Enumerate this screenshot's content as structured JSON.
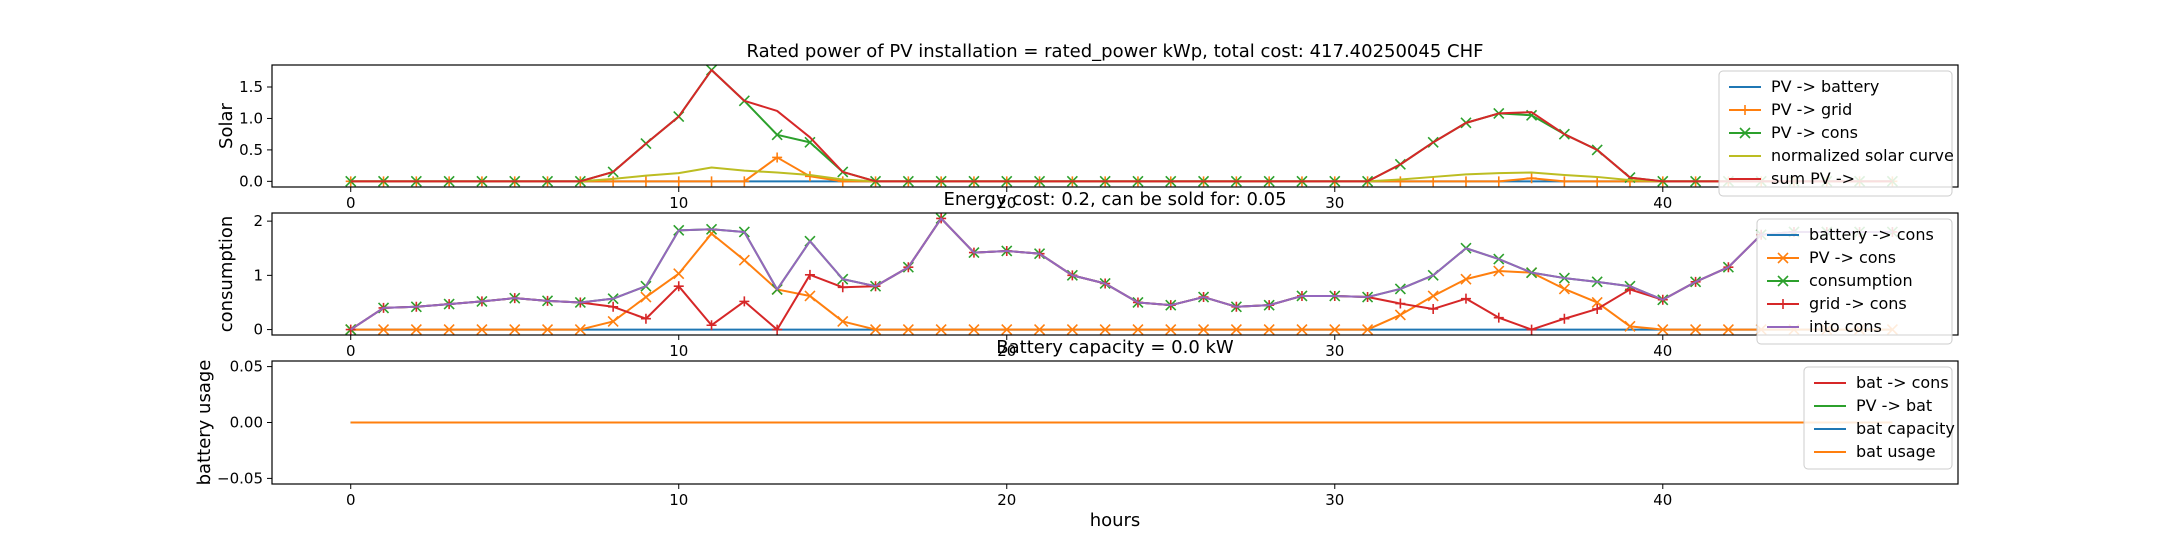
{
  "chart_data": [
    {
      "type": "line",
      "title": "Rated power of PV installation = rated_power kWp, total cost: 417.40250045 CHF",
      "xlabel": "",
      "ylabel": "Solar",
      "xlim": [
        -2.4,
        49
      ],
      "ylim": [
        -0.09,
        1.85
      ],
      "xticks": [
        "0",
        "10",
        "20",
        "30",
        "40"
      ],
      "yticks": [
        "0.0",
        "0.5",
        "1.0",
        "1.5"
      ],
      "legend_position": "top-right",
      "x": [
        0,
        1,
        2,
        3,
        4,
        5,
        6,
        7,
        8,
        9,
        10,
        11,
        12,
        13,
        14,
        15,
        16,
        17,
        18,
        19,
        20,
        21,
        22,
        23,
        24,
        25,
        26,
        27,
        28,
        29,
        30,
        31,
        32,
        33,
        34,
        35,
        36,
        37,
        38,
        39,
        40,
        41,
        42,
        43,
        44,
        45,
        46,
        47
      ],
      "series": [
        {
          "name": "PV -> battery",
          "color": "#1f77b4",
          "marker": "none",
          "values": [
            0,
            0,
            0,
            0,
            0,
            0,
            0,
            0,
            0,
            0,
            0,
            0,
            0,
            0,
            0,
            0,
            0,
            0,
            0,
            0,
            0,
            0,
            0,
            0,
            0,
            0,
            0,
            0,
            0,
            0,
            0,
            0,
            0,
            0,
            0,
            0,
            0,
            0,
            0,
            0,
            0,
            0,
            0,
            0,
            0,
            0,
            0,
            0
          ]
        },
        {
          "name": "PV -> grid",
          "color": "#ff7f0e",
          "marker": "plus",
          "values": [
            0,
            0,
            0,
            0,
            0,
            0,
            0,
            0,
            0,
            0,
            0,
            0,
            0,
            0.38,
            0.08,
            0,
            0,
            0,
            0,
            0,
            0,
            0,
            0,
            0,
            0,
            0,
            0,
            0,
            0,
            0,
            0,
            0,
            0,
            0,
            0,
            0,
            0.05,
            0,
            0,
            0,
            0,
            0,
            0,
            0,
            0,
            0,
            0,
            0
          ]
        },
        {
          "name": "PV -> cons",
          "color": "#2ca02c",
          "marker": "x",
          "values": [
            0,
            0,
            0,
            0,
            0,
            0,
            0,
            0,
            0.15,
            0.6,
            1.03,
            1.77,
            1.28,
            0.74,
            0.62,
            0.15,
            0,
            0,
            0,
            0,
            0,
            0,
            0,
            0,
            0,
            0,
            0,
            0,
            0,
            0,
            0,
            0,
            0.27,
            0.62,
            0.93,
            1.08,
            1.05,
            0.75,
            0.5,
            0.06,
            0,
            0,
            0,
            0,
            0,
            0,
            0,
            0
          ]
        },
        {
          "name": "normalized solar curve",
          "color": "#bcbd22",
          "marker": "none",
          "values": [
            0,
            0,
            0,
            0,
            0,
            0,
            0,
            0,
            0.04,
            0.09,
            0.13,
            0.22,
            0.17,
            0.14,
            0.1,
            0.03,
            0,
            0,
            0,
            0,
            0,
            0,
            0,
            0,
            0,
            0,
            0,
            0,
            0,
            0,
            0,
            0,
            0.03,
            0.07,
            0.11,
            0.13,
            0.14,
            0.1,
            0.07,
            0.02,
            0,
            0,
            0,
            0,
            0,
            0,
            0,
            0
          ]
        },
        {
          "name": "sum PV ->",
          "color": "#d62728",
          "marker": "none",
          "values": [
            0,
            0,
            0,
            0,
            0,
            0,
            0,
            0,
            0.15,
            0.6,
            1.03,
            1.77,
            1.28,
            1.12,
            0.7,
            0.15,
            0,
            0,
            0,
            0,
            0,
            0,
            0,
            0,
            0,
            0,
            0,
            0,
            0,
            0,
            0,
            0,
            0.27,
            0.62,
            0.93,
            1.08,
            1.1,
            0.75,
            0.5,
            0.06,
            0,
            0,
            0,
            0,
            0,
            0,
            0,
            0
          ]
        }
      ]
    },
    {
      "type": "line",
      "title": "Energy cost: 0.2, can be sold for: 0.05",
      "xlabel": "",
      "ylabel": "consumption",
      "xlim": [
        -2.4,
        49
      ],
      "ylim": [
        -0.1,
        2.15
      ],
      "xticks": [
        "0",
        "10",
        "20",
        "30",
        "40"
      ],
      "yticks": [
        "0",
        "1",
        "2"
      ],
      "legend_position": "top-right",
      "x": [
        0,
        1,
        2,
        3,
        4,
        5,
        6,
        7,
        8,
        9,
        10,
        11,
        12,
        13,
        14,
        15,
        16,
        17,
        18,
        19,
        20,
        21,
        22,
        23,
        24,
        25,
        26,
        27,
        28,
        29,
        30,
        31,
        32,
        33,
        34,
        35,
        36,
        37,
        38,
        39,
        40,
        41,
        42,
        43,
        44,
        45,
        46,
        47
      ],
      "series": [
        {
          "name": "battery -> cons",
          "color": "#1f77b4",
          "marker": "none",
          "values": [
            0,
            0,
            0,
            0,
            0,
            0,
            0,
            0,
            0,
            0,
            0,
            0,
            0,
            0,
            0,
            0,
            0,
            0,
            0,
            0,
            0,
            0,
            0,
            0,
            0,
            0,
            0,
            0,
            0,
            0,
            0,
            0,
            0,
            0,
            0,
            0,
            0,
            0,
            0,
            0,
            0,
            0,
            0,
            0,
            0,
            0,
            0,
            0
          ]
        },
        {
          "name": "PV -> cons",
          "color": "#ff7f0e",
          "marker": "x",
          "values": [
            0,
            0,
            0,
            0,
            0,
            0,
            0,
            0,
            0.15,
            0.6,
            1.03,
            1.77,
            1.28,
            0.74,
            0.62,
            0.15,
            0,
            0,
            0,
            0,
            0,
            0,
            0,
            0,
            0,
            0,
            0,
            0,
            0,
            0,
            0,
            0,
            0.27,
            0.62,
            0.93,
            1.08,
            1.05,
            0.75,
            0.5,
            0.06,
            0,
            0,
            0,
            0,
            0,
            0,
            0,
            0
          ]
        },
        {
          "name": "consumption",
          "color": "#2ca02c",
          "marker": "x",
          "values": [
            0,
            0.4,
            0.42,
            0.47,
            0.52,
            0.58,
            0.53,
            0.5,
            0.57,
            0.8,
            1.83,
            1.85,
            1.8,
            0.74,
            1.63,
            0.93,
            0.8,
            1.15,
            2.05,
            1.42,
            1.45,
            1.4,
            1.0,
            0.85,
            0.5,
            0.45,
            0.6,
            0.42,
            0.45,
            0.62,
            0.62,
            0.6,
            0.75,
            1.0,
            1.5,
            1.3,
            1.05,
            0.95,
            0.88,
            0.8,
            0.55,
            0.88,
            1.15,
            1.75,
            1.8,
            1.8,
            1.8,
            1.8
          ]
        },
        {
          "name": "grid -> cons",
          "color": "#d62728",
          "marker": "plus",
          "values": [
            0,
            0.4,
            0.42,
            0.47,
            0.52,
            0.58,
            0.53,
            0.5,
            0.42,
            0.2,
            0.8,
            0.08,
            0.52,
            0,
            1.01,
            0.78,
            0.8,
            1.15,
            2.05,
            1.42,
            1.45,
            1.4,
            1.0,
            0.85,
            0.5,
            0.45,
            0.6,
            0.42,
            0.45,
            0.62,
            0.62,
            0.6,
            0.48,
            0.38,
            0.57,
            0.22,
            0,
            0.2,
            0.38,
            0.74,
            0.55,
            0.88,
            1.15,
            1.75,
            1.8,
            1.8,
            1.8,
            1.8
          ]
        },
        {
          "name": "into cons",
          "color": "#9467bd",
          "marker": "none",
          "values": [
            0,
            0.4,
            0.42,
            0.47,
            0.52,
            0.58,
            0.53,
            0.5,
            0.57,
            0.8,
            1.83,
            1.85,
            1.8,
            0.74,
            1.63,
            0.93,
            0.8,
            1.15,
            2.05,
            1.42,
            1.45,
            1.4,
            1.0,
            0.85,
            0.5,
            0.45,
            0.6,
            0.42,
            0.45,
            0.62,
            0.62,
            0.6,
            0.75,
            1.0,
            1.5,
            1.3,
            1.05,
            0.95,
            0.88,
            0.8,
            0.55,
            0.88,
            1.15,
            1.75,
            1.8,
            1.8,
            1.8,
            1.8
          ]
        }
      ]
    },
    {
      "type": "line",
      "title": "Battery capacity = 0.0 kW",
      "xlabel": "hours",
      "ylabel": "battery usage",
      "xlim": [
        -2.4,
        49
      ],
      "ylim": [
        -0.055,
        0.055
      ],
      "xticks": [
        "0",
        "10",
        "20",
        "30",
        "40"
      ],
      "yticks": [
        "−0.05",
        "0.00",
        "0.05"
      ],
      "legend_position": "top-right",
      "x": [
        0,
        1,
        2,
        3,
        4,
        5,
        6,
        7,
        8,
        9,
        10,
        11,
        12,
        13,
        14,
        15,
        16,
        17,
        18,
        19,
        20,
        21,
        22,
        23,
        24,
        25,
        26,
        27,
        28,
        29,
        30,
        31,
        32,
        33,
        34,
        35,
        36,
        37,
        38,
        39,
        40,
        41,
        42,
        43,
        44,
        45,
        46,
        47
      ],
      "series": [
        {
          "name": "bat -> cons",
          "color": "#d62728",
          "marker": "none",
          "values": [
            0,
            0,
            0,
            0,
            0,
            0,
            0,
            0,
            0,
            0,
            0,
            0,
            0,
            0,
            0,
            0,
            0,
            0,
            0,
            0,
            0,
            0,
            0,
            0,
            0,
            0,
            0,
            0,
            0,
            0,
            0,
            0,
            0,
            0,
            0,
            0,
            0,
            0,
            0,
            0,
            0,
            0,
            0,
            0,
            0,
            0,
            0,
            0
          ]
        },
        {
          "name": "PV -> bat",
          "color": "#2ca02c",
          "marker": "none",
          "values": [
            0,
            0,
            0,
            0,
            0,
            0,
            0,
            0,
            0,
            0,
            0,
            0,
            0,
            0,
            0,
            0,
            0,
            0,
            0,
            0,
            0,
            0,
            0,
            0,
            0,
            0,
            0,
            0,
            0,
            0,
            0,
            0,
            0,
            0,
            0,
            0,
            0,
            0,
            0,
            0,
            0,
            0,
            0,
            0,
            0,
            0,
            0,
            0
          ]
        },
        {
          "name": "bat capacity",
          "color": "#1f77b4",
          "marker": "none",
          "values": [
            0,
            0,
            0,
            0,
            0,
            0,
            0,
            0,
            0,
            0,
            0,
            0,
            0,
            0,
            0,
            0,
            0,
            0,
            0,
            0,
            0,
            0,
            0,
            0,
            0,
            0,
            0,
            0,
            0,
            0,
            0,
            0,
            0,
            0,
            0,
            0,
            0,
            0,
            0,
            0,
            0,
            0,
            0,
            0,
            0,
            0,
            0,
            0
          ]
        },
        {
          "name": "bat usage",
          "color": "#ff7f0e",
          "marker": "none",
          "values": [
            0,
            0,
            0,
            0,
            0,
            0,
            0,
            0,
            0,
            0,
            0,
            0,
            0,
            0,
            0,
            0,
            0,
            0,
            0,
            0,
            0,
            0,
            0,
            0,
            0,
            0,
            0,
            0,
            0,
            0,
            0,
            0,
            0,
            0,
            0,
            0,
            0,
            0,
            0,
            0,
            0,
            0,
            0,
            0,
            0,
            0,
            0,
            0
          ]
        }
      ]
    }
  ]
}
